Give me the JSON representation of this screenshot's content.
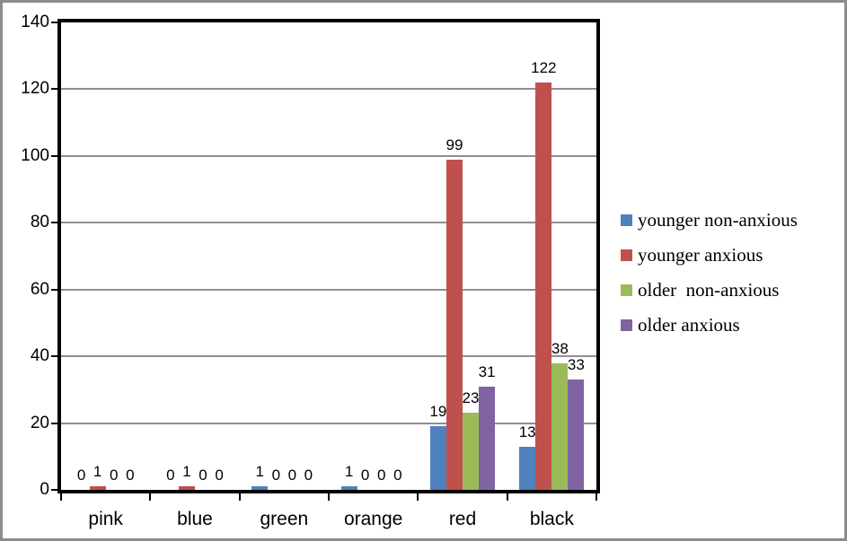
{
  "chart_data": {
    "type": "bar",
    "title": "",
    "xlabel": "",
    "ylabel": "",
    "categories": [
      "pink",
      "blue",
      "green",
      "orange",
      "red",
      "black"
    ],
    "series": [
      {
        "name": "younger non-anxious",
        "color": "#4f81bd",
        "values": [
          0,
          0,
          1,
          1,
          19,
          13
        ]
      },
      {
        "name": "younger anxious",
        "color": "#c0504d",
        "values": [
          1,
          1,
          0,
          0,
          99,
          122
        ]
      },
      {
        "name": "older  non-anxious",
        "color": "#9bbb59",
        "values": [
          0,
          0,
          0,
          0,
          23,
          38
        ]
      },
      {
        "name": "older anxious",
        "color": "#8064a2",
        "values": [
          0,
          0,
          0,
          0,
          31,
          33
        ]
      }
    ],
    "ylim": [
      0,
      140
    ],
    "ytick_step": 20,
    "ytick_labels": [
      "0",
      "20",
      "40",
      "60",
      "80",
      "100",
      "120",
      "140"
    ],
    "grid": true,
    "data_labels": true,
    "legend_position": "right",
    "colors": {
      "gridline": "#8f8f8f",
      "plot_border": "#000000",
      "frame_border": "#8c8c8c",
      "background": "#ffffff",
      "text": "#000000"
    }
  }
}
